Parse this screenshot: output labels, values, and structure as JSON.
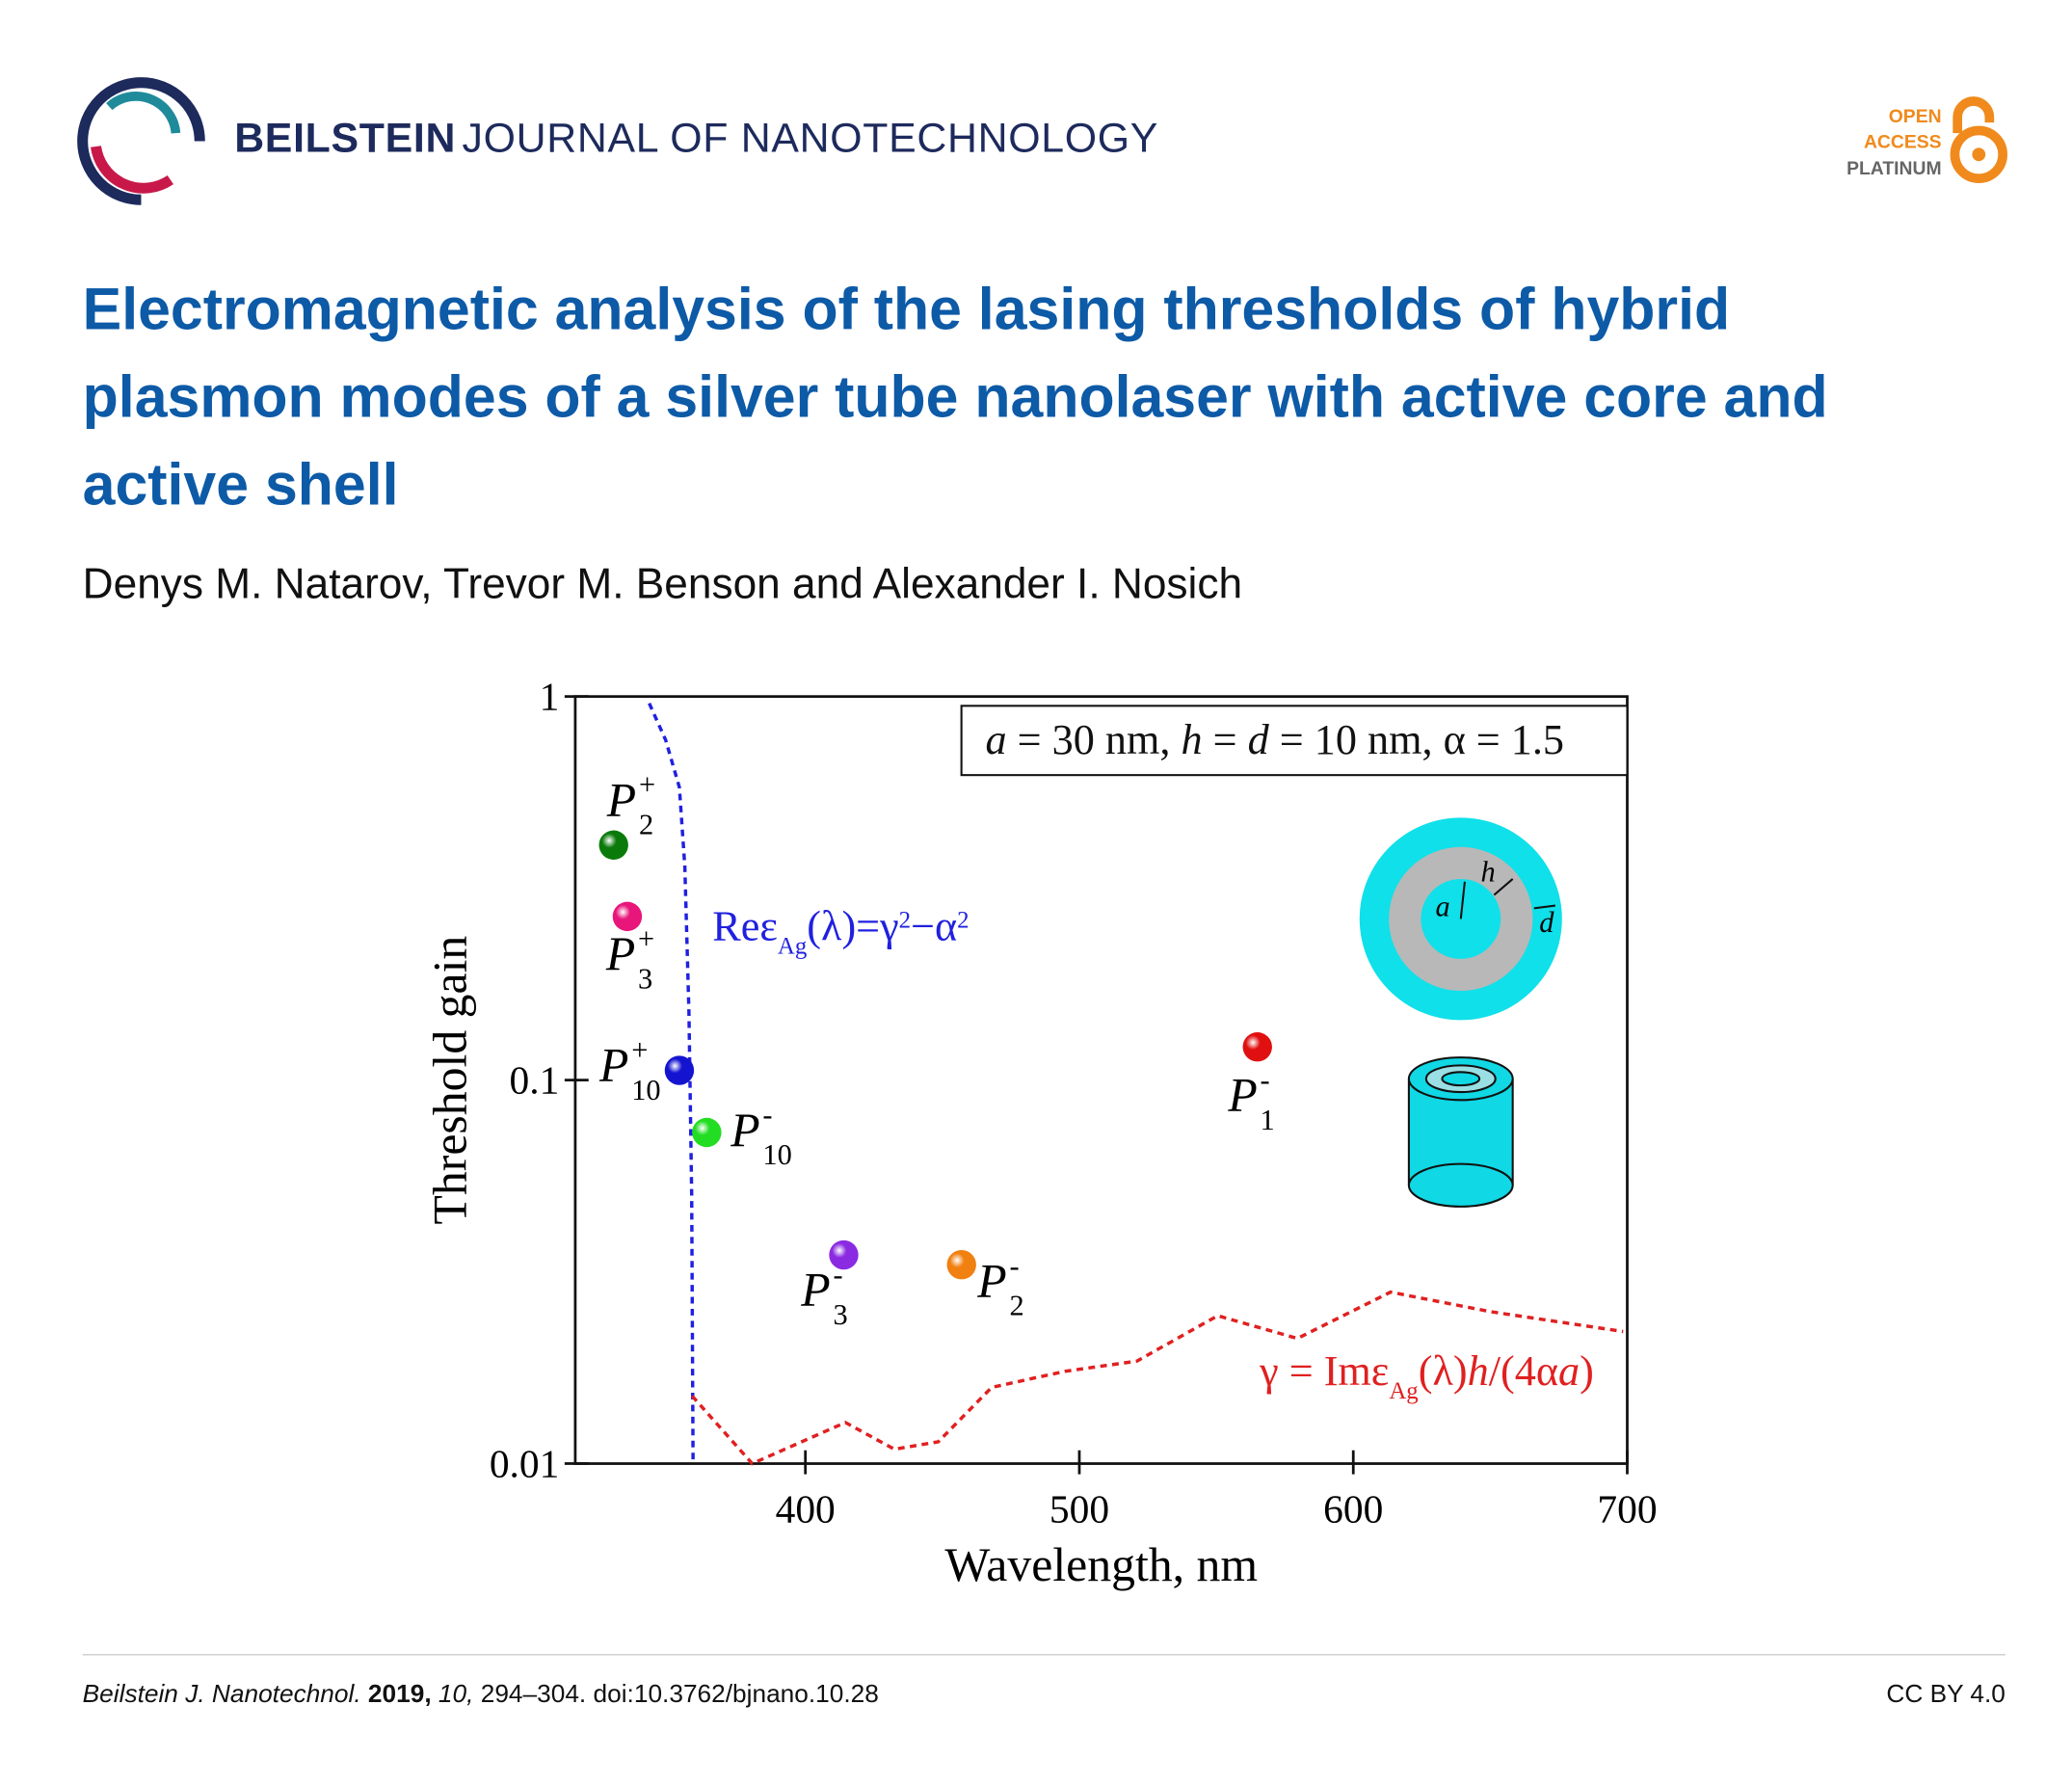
{
  "header": {
    "journal_bold": "BEILSTEIN",
    "journal_rest": "JOURNAL OF NANOTECHNOLOGY",
    "open": "OPEN",
    "access": "ACCESS",
    "platinum": "PLATINUM"
  },
  "title": "Electromagnetic analysis of the lasing thresholds of hybrid plasmon modes of a silver tube nanolaser with active core and active shell",
  "authors": "Denys M. Natarov, Trevor M. Benson and Alexander I. Nosich",
  "chart_data": {
    "type": "scatter",
    "x_label": "Wavelength, nm",
    "y_label": "Threshold gain",
    "xlim": [
      316,
      700
    ],
    "xticks": [
      400,
      500,
      600,
      700
    ],
    "ylim": [
      0.01,
      1
    ],
    "yticks": [
      0.01,
      0.1,
      1
    ],
    "yscale": "log",
    "points": [
      {
        "x": 330,
        "y": 0.41,
        "color": "#0a7a0a",
        "label": {
          "base": "P",
          "sup": "+",
          "sub": "2"
        }
      },
      {
        "x": 335,
        "y": 0.267,
        "color": "#e8157a",
        "label": {
          "base": "P",
          "sup": "+",
          "sub": "3"
        }
      },
      {
        "x": 354,
        "y": 0.106,
        "color": "#1414d0",
        "label": {
          "base": "P",
          "sup": "+",
          "sub": "10"
        }
      },
      {
        "x": 364,
        "y": 0.073,
        "color": "#22dd22",
        "label": {
          "base": "P",
          "sup": "-",
          "sub": "10"
        }
      },
      {
        "x": 414,
        "y": 0.035,
        "color": "#8a2be2",
        "label": {
          "base": "P",
          "sup": "-",
          "sub": "3"
        }
      },
      {
        "x": 457,
        "y": 0.033,
        "color": "#f08010",
        "label": {
          "base": "P",
          "sup": "-",
          "sub": "2"
        }
      },
      {
        "x": 565,
        "y": 0.122,
        "color": "#e01010",
        "label": {
          "base": "P",
          "sup": "-",
          "sub": "1"
        }
      }
    ],
    "curves": [
      {
        "color": "#2020e0",
        "x": [
          343,
          349,
          354,
          356,
          357.5,
          358.5,
          359
        ],
        "y": [
          0.96,
          0.77,
          0.58,
          0.36,
          0.15,
          0.05,
          0.01
        ]
      },
      {
        "color": "#e02020",
        "x": [
          358.7,
          380.6,
          414.6,
          432.5,
          448.5,
          468,
          494.7,
          521,
          550.5,
          579.6,
          613.6,
          650,
          698.5
        ],
        "y": [
          0.015,
          0.01,
          0.0128,
          0.0109,
          0.0114,
          0.0158,
          0.0174,
          0.0185,
          0.0243,
          0.0212,
          0.028,
          0.0249,
          0.0221
        ]
      }
    ],
    "annotations": [
      {
        "color": "#111111",
        "parts": [
          {
            "t": "a",
            "italic": true
          },
          {
            "t": " = 30 nm, "
          },
          {
            "t": "h",
            "italic": true
          },
          {
            "t": " = "
          },
          {
            "t": "d",
            "italic": true
          },
          {
            "t": " = 10 nm, α = 1.5"
          }
        ]
      },
      {
        "color": "#2020e0",
        "parts": [
          {
            "t": "Reε"
          },
          {
            "t": "Ag",
            "sub": true
          },
          {
            "t": "(λ)=γ"
          },
          {
            "t": "2",
            "sup": true
          },
          {
            "t": "−α"
          },
          {
            "t": "2",
            "sup": true
          }
        ]
      },
      {
        "color": "#e02020",
        "parts": [
          {
            "t": "γ = Imε"
          },
          {
            "t": "Ag",
            "sub": true
          },
          {
            "t": "(λ)"
          },
          {
            "t": "h",
            "italic": true
          },
          {
            "t": "/(4α"
          },
          {
            "t": "a",
            "italic": true
          },
          {
            "t": ")"
          }
        ]
      }
    ],
    "inset_labels": [
      "a",
      "h",
      "d"
    ]
  },
  "footer": {
    "journal": "Beilstein J. Nanotechnol.",
    "year": "2019,",
    "volume": "10,",
    "rest": " 294–304. doi:10.3762/bjnano.10.28",
    "license": "CC BY 4.0"
  }
}
